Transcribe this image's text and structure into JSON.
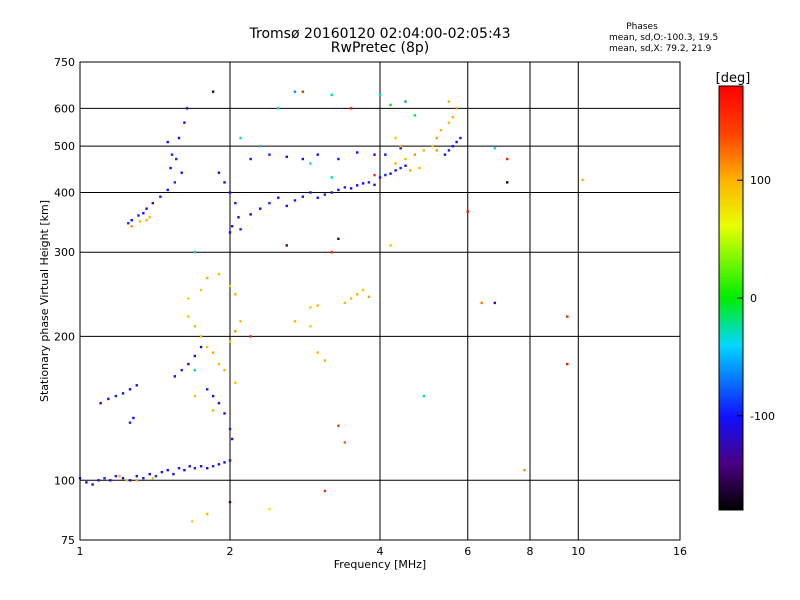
{
  "chart_data": {
    "type": "scatter",
    "title": "Tromsø 20160120 02:04:00-02:05:43",
    "subtitle": "RwPretec (8p)",
    "xlabel": "Frequency [MHz]",
    "ylabel": "Stationary phase Virtual Height [km]",
    "x_scale": "log",
    "y_scale": "log",
    "xlim": [
      1,
      16
    ],
    "ylim": [
      75,
      750
    ],
    "x_ticks": [
      1,
      2,
      4,
      6,
      8,
      10,
      16
    ],
    "y_ticks": [
      75,
      100,
      200,
      300,
      400,
      500,
      600,
      750
    ],
    "grid": true,
    "colorbar": {
      "label": "[deg]",
      "range": [
        -180,
        180
      ],
      "ticks": [
        100,
        0,
        -100
      ]
    },
    "stats_header": "Phases",
    "stats_lines": [
      "mean, sd,O:-100.3, 19.5",
      "mean, sd,X:  79.2, 21.9"
    ],
    "series": [
      {
        "points": [
          [
            1.0,
            101,
            -95
          ],
          [
            1.03,
            99,
            -105
          ],
          [
            1.06,
            98,
            -100
          ],
          [
            1.09,
            100,
            -110
          ],
          [
            1.12,
            101,
            -90
          ],
          [
            1.15,
            100,
            -100
          ],
          [
            1.18,
            102,
            -95
          ],
          [
            1.22,
            101,
            -105
          ],
          [
            1.26,
            100,
            -100
          ],
          [
            1.3,
            102,
            -110
          ],
          [
            1.34,
            101,
            -95
          ],
          [
            1.38,
            103,
            -100
          ],
          [
            1.42,
            102,
            -90
          ],
          [
            1.46,
            104,
            -105
          ],
          [
            1.5,
            105,
            -100
          ],
          [
            1.54,
            103,
            -110
          ],
          [
            1.58,
            106,
            -95
          ],
          [
            1.62,
            105,
            -100
          ],
          [
            1.66,
            107,
            -105
          ],
          [
            1.7,
            106,
            -95
          ],
          [
            1.75,
            107,
            -100
          ],
          [
            1.8,
            106,
            -110
          ],
          [
            1.85,
            107,
            -95
          ],
          [
            1.9,
            108,
            -100
          ],
          [
            1.95,
            109,
            -105
          ],
          [
            2.0,
            110,
            -100
          ],
          [
            1.1,
            145,
            -100
          ],
          [
            1.14,
            148,
            -105
          ],
          [
            1.18,
            150,
            -95
          ],
          [
            1.22,
            152,
            -100
          ],
          [
            1.26,
            155,
            -110
          ],
          [
            1.3,
            158,
            -100
          ],
          [
            1.26,
            132,
            -95
          ],
          [
            1.28,
            135,
            -100
          ],
          [
            1.55,
            165,
            -100
          ],
          [
            1.6,
            170,
            -95
          ],
          [
            1.65,
            175,
            -105
          ],
          [
            1.7,
            182,
            -100
          ],
          [
            1.75,
            190,
            -110
          ],
          [
            1.8,
            155,
            -95
          ],
          [
            1.85,
            150,
            -100
          ],
          [
            1.9,
            145,
            -100
          ],
          [
            1.95,
            138,
            -105
          ],
          [
            2.0,
            128,
            -95
          ],
          [
            2.02,
            122,
            -100
          ],
          [
            1.25,
            345,
            -90
          ],
          [
            1.27,
            350,
            -100
          ],
          [
            1.31,
            358,
            -95
          ],
          [
            1.34,
            362,
            -105
          ],
          [
            1.36,
            370,
            -100
          ],
          [
            1.4,
            380,
            -110
          ],
          [
            1.45,
            392,
            -95
          ],
          [
            1.5,
            405,
            -100
          ],
          [
            1.55,
            420,
            -90
          ],
          [
            1.6,
            440,
            -100
          ],
          [
            1.52,
            450,
            -110
          ],
          [
            1.56,
            470,
            -95
          ],
          [
            1.58,
            520,
            -100
          ],
          [
            1.62,
            560,
            -105
          ],
          [
            1.64,
            600,
            -100
          ],
          [
            1.5,
            510,
            -100
          ],
          [
            1.53,
            480,
            -95
          ],
          [
            1.9,
            440,
            -100
          ],
          [
            1.95,
            420,
            -105
          ],
          [
            2.0,
            400,
            -110
          ],
          [
            2.05,
            380,
            -95
          ],
          [
            2.08,
            355,
            -100
          ],
          [
            2.02,
            340,
            -110
          ],
          [
            2.0,
            330,
            -100
          ],
          [
            2.1,
            335,
            -95
          ],
          [
            2.2,
            360,
            -100
          ],
          [
            2.3,
            370,
            -105
          ],
          [
            2.4,
            380,
            -95
          ],
          [
            2.5,
            390,
            -100
          ],
          [
            2.6,
            375,
            -110
          ],
          [
            2.7,
            385,
            -95
          ],
          [
            2.8,
            392,
            -100
          ],
          [
            2.9,
            400,
            -105
          ],
          [
            3.0,
            390,
            -100
          ],
          [
            3.1,
            396,
            -95
          ],
          [
            3.2,
            400,
            -110
          ],
          [
            3.3,
            405,
            -100
          ],
          [
            3.4,
            410,
            -95
          ],
          [
            3.5,
            408,
            -105
          ],
          [
            3.6,
            414,
            -100
          ],
          [
            3.7,
            418,
            -100
          ],
          [
            3.8,
            420,
            -95
          ],
          [
            3.9,
            415,
            -110
          ],
          [
            4.0,
            430,
            -100
          ],
          [
            4.1,
            435,
            -95
          ],
          [
            4.2,
            438,
            -100
          ],
          [
            4.3,
            445,
            -105
          ],
          [
            4.4,
            450,
            -95
          ],
          [
            4.5,
            455,
            -100
          ],
          [
            5.4,
            480,
            -100
          ],
          [
            5.5,
            490,
            -95
          ],
          [
            5.6,
            500,
            -105
          ],
          [
            5.7,
            510,
            -100
          ],
          [
            5.8,
            520,
            -110
          ],
          [
            2.2,
            470,
            -100
          ],
          [
            2.4,
            480,
            -95
          ],
          [
            2.6,
            475,
            -100
          ],
          [
            2.8,
            470,
            -105
          ],
          [
            3.0,
            480,
            -100
          ],
          [
            3.3,
            470,
            -95
          ],
          [
            3.6,
            485,
            -100
          ],
          [
            3.9,
            480,
            -110
          ],
          [
            4.1,
            480,
            -100
          ],
          [
            4.4,
            495,
            -100
          ],
          [
            1.36,
            350,
            100
          ],
          [
            1.38,
            355,
            90
          ],
          [
            1.27,
            340,
            110
          ],
          [
            1.32,
            348,
            95
          ],
          [
            1.65,
            220,
            85
          ],
          [
            1.7,
            210,
            95
          ],
          [
            1.75,
            200,
            100
          ],
          [
            1.8,
            190,
            90
          ],
          [
            1.85,
            185,
            105
          ],
          [
            1.9,
            175,
            95
          ],
          [
            1.95,
            170,
            100
          ],
          [
            2.0,
            195,
            90
          ],
          [
            2.05,
            205,
            110
          ],
          [
            2.1,
            215,
            95
          ],
          [
            1.65,
            240,
            80
          ],
          [
            1.75,
            250,
            90
          ],
          [
            1.8,
            265,
            100
          ],
          [
            1.9,
            270,
            95
          ],
          [
            2.0,
            255,
            85
          ],
          [
            2.05,
            245,
            100
          ],
          [
            1.7,
            150,
            95
          ],
          [
            1.85,
            140,
            100
          ],
          [
            2.05,
            160,
            90
          ],
          [
            1.2,
            102,
            100
          ],
          [
            1.24,
            100,
            95
          ],
          [
            1.3,
            100,
            105
          ],
          [
            1.4,
            101,
            90
          ],
          [
            1.68,
            82,
            80
          ],
          [
            1.8,
            85,
            95
          ],
          [
            2.4,
            87,
            70
          ],
          [
            3.5,
            240,
            95
          ],
          [
            3.6,
            245,
            100
          ],
          [
            3.7,
            250,
            90
          ],
          [
            3.8,
            242,
            105
          ],
          [
            3.4,
            235,
            95
          ],
          [
            2.7,
            215,
            100
          ],
          [
            2.9,
            210,
            90
          ],
          [
            3.0,
            185,
            95
          ],
          [
            3.1,
            178,
            100
          ],
          [
            2.9,
            230,
            85
          ],
          [
            3.0,
            232,
            95
          ],
          [
            4.3,
            460,
            100
          ],
          [
            4.5,
            470,
            95
          ],
          [
            4.7,
            480,
            110
          ],
          [
            4.9,
            490,
            100
          ],
          [
            5.1,
            500,
            90
          ],
          [
            5.2,
            520,
            105
          ],
          [
            5.3,
            540,
            100
          ],
          [
            5.5,
            560,
            95
          ],
          [
            5.6,
            575,
            100
          ],
          [
            5.7,
            600,
            110
          ],
          [
            5.5,
            620,
            100
          ],
          [
            4.8,
            450,
            95
          ],
          [
            4.6,
            445,
            100
          ],
          [
            4.4,
            500,
            100
          ],
          [
            4.3,
            520,
            90
          ],
          [
            10.2,
            425,
            100
          ],
          [
            7.8,
            105,
            110
          ],
          [
            4.2,
            310,
            95
          ],
          [
            5.2,
            490,
            110
          ],
          [
            4.0,
            640,
            -30
          ],
          [
            4.2,
            610,
            0
          ],
          [
            4.5,
            620,
            -60
          ],
          [
            3.2,
            640,
            -20
          ],
          [
            2.5,
            600,
            -40
          ],
          [
            2.1,
            520,
            -30
          ],
          [
            1.7,
            170,
            -20
          ],
          [
            2.3,
            500,
            -50
          ],
          [
            2.9,
            460,
            -40
          ],
          [
            3.2,
            430,
            -30
          ],
          [
            4.9,
            150,
            -20
          ],
          [
            6.8,
            495,
            -40
          ],
          [
            1.7,
            300,
            -30
          ],
          [
            2.7,
            650,
            -60
          ],
          [
            4.7,
            580,
            -10
          ],
          [
            6.0,
            365,
            170
          ],
          [
            7.2,
            470,
            160
          ],
          [
            9.5,
            220,
            150
          ],
          [
            9.5,
            175,
            165
          ],
          [
            3.1,
            95,
            155
          ],
          [
            2.8,
            650,
            150
          ],
          [
            3.5,
            600,
            170
          ],
          [
            2.2,
            200,
            160
          ],
          [
            3.3,
            130,
            140
          ],
          [
            3.9,
            435,
            150
          ],
          [
            6.4,
            235,
            120
          ],
          [
            3.2,
            300,
            150
          ],
          [
            3.4,
            120,
            130
          ],
          [
            7.2,
            420,
            -170
          ],
          [
            2.0,
            90,
            -150
          ],
          [
            6.8,
            235,
            -130
          ],
          [
            1.85,
            650,
            -160
          ],
          [
            2.6,
            310,
            -140
          ],
          [
            3.3,
            320,
            -150
          ]
        ]
      }
    ]
  }
}
